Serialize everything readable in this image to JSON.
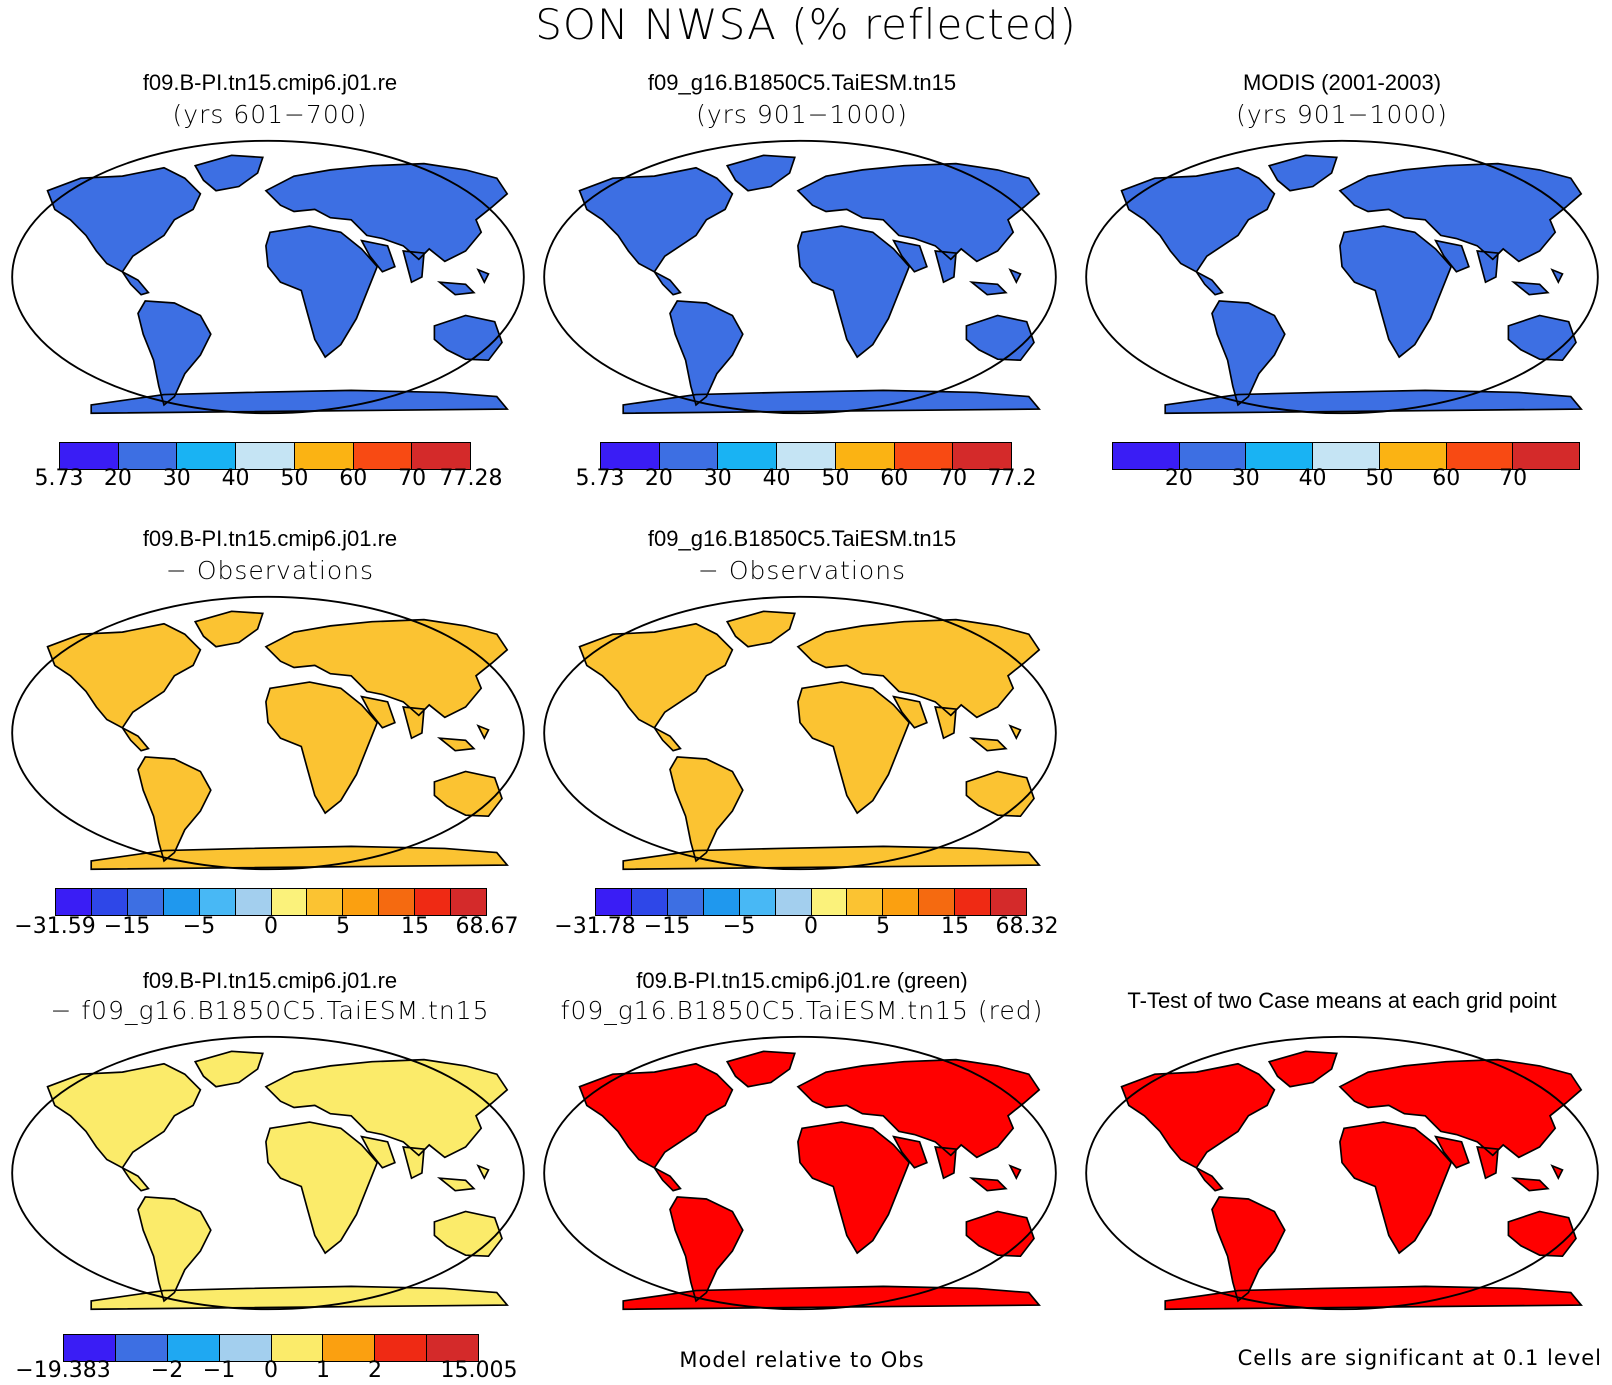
{
  "figure_title": "SON NWSA (% reflected)",
  "panels": [
    {
      "title": "f09.B-PI.tn15.cmip6.j01.re",
      "subtitle": "(yrs 601−700)"
    },
    {
      "title": "f09_g16.B1850C5.TaiESM.tn15",
      "subtitle": "(yrs 901−1000)"
    },
    {
      "title": "MODIS (2001-2003)",
      "subtitle": "(yrs 901−1000)"
    },
    {
      "title": "f09.B-PI.tn15.cmip6.j01.re",
      "subtitle": "− Observations"
    },
    {
      "title": "f09_g16.B1850C5.TaiESM.tn15",
      "subtitle": "− Observations"
    },
    {
      "title": "f09.B-PI.tn15.cmip6.j01.re",
      "subtitle": "− f09_g16.B1850C5.TaiESM.tn15"
    },
    {
      "title": "f09.B-PI.tn15.cmip6.j01.re (green)",
      "subtitle": "f09_g16.B1850C5.TaiESM.tn15 (red)"
    },
    {
      "title": "T-Test of two Case means at each grid point",
      "subtitle": ""
    }
  ],
  "footnotes": {
    "model_relative": "Model relative to Obs",
    "significance": "Cells are significant at 0.1 level"
  },
  "colors": {
    "abs_scale": [
      "#3a1df5",
      "#3d6fe3",
      "#19b3f3",
      "#c5e4f4",
      "#fbb313",
      "#f84a13",
      "#d42a2a"
    ],
    "diff_scale": [
      "#3a1df5",
      "#2e47e8",
      "#3d6fe3",
      "#1f98ee",
      "#48b8f5",
      "#a3cfee",
      "#fbf27b",
      "#fbc332",
      "#fba010",
      "#f56a10",
      "#ef2a14",
      "#d42a2a"
    ],
    "cc_scale": [
      "#3a1df5",
      "#3d6fe3",
      "#1fa8f2",
      "#a3cfee",
      "#fbeb6a",
      "#fba010",
      "#ef2a14",
      "#d42a2a"
    ],
    "land_base": "#3d6fe3",
    "sig_red": "#ff0000",
    "sig_green": "#00ee00"
  },
  "chart_data": [
    {
      "type": "heatmap",
      "title": "f09.B-PI.tn15.cmip6.j01.re",
      "subtitle": "(yrs 601−700)",
      "colorbar_ticks": [
        "5.73",
        "20",
        "30",
        "40",
        "50",
        "60",
        "70",
        "77.28"
      ],
      "range": [
        5.73,
        77.28
      ]
    },
    {
      "type": "heatmap",
      "title": "f09_g16.B1850C5.TaiESM.tn15",
      "subtitle": "(yrs 901−1000)",
      "colorbar_ticks": [
        "5.73",
        "20",
        "30",
        "40",
        "50",
        "60",
        "70",
        "77.2"
      ],
      "range": [
        5.73,
        77.2
      ]
    },
    {
      "type": "heatmap",
      "title": "MODIS (2001-2003)",
      "subtitle": "(yrs 901−1000)",
      "colorbar_ticks": [
        "20",
        "30",
        "40",
        "50",
        "60",
        "70"
      ]
    },
    {
      "type": "heatmap",
      "title": "f09.B-PI.tn15.cmip6.j01.re",
      "subtitle": "− Observations",
      "colorbar_ticks": [
        "−31.59",
        "−15",
        "−5",
        "0",
        "5",
        "15",
        "68.67"
      ],
      "range": [
        -31.59,
        68.67
      ]
    },
    {
      "type": "heatmap",
      "title": "f09_g16.B1850C5.TaiESM.tn15",
      "subtitle": "− Observations",
      "colorbar_ticks": [
        "−31.78",
        "−15",
        "−5",
        "0",
        "5",
        "15",
        "68.32"
      ],
      "range": [
        -31.78,
        68.32
      ]
    },
    {
      "type": "heatmap",
      "title": "f09.B-PI.tn15.cmip6.j01.re",
      "subtitle": "− f09_g16.B1850C5.TaiESM.tn15",
      "colorbar_ticks": [
        "−19.383",
        "−2",
        "−1",
        "0",
        "1",
        "2",
        "15.005"
      ],
      "range": [
        -19.383,
        15.005
      ]
    },
    {
      "type": "heatmap",
      "title": "f09.B-PI.tn15.cmip6.j01.re (green)",
      "subtitle": "f09_g16.B1850C5.TaiESM.tn15 (red)"
    },
    {
      "type": "heatmap",
      "title": "T-Test of two Case means at each grid point"
    }
  ]
}
